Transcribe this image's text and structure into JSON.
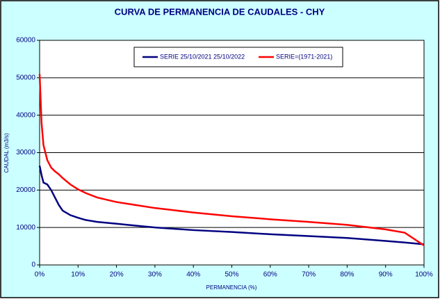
{
  "chart_data": {
    "type": "line",
    "title": "CURVA DE PERMANENCIA DE CAUDALES - CHY",
    "x_label": "PERMANENCIA (%)",
    "y_label": "CAUDAL (m3/s)",
    "x": [
      0,
      0.5,
      1,
      2,
      3,
      4,
      5,
      6,
      8,
      10,
      12,
      15,
      20,
      25,
      30,
      40,
      50,
      60,
      70,
      80,
      90,
      95,
      100
    ],
    "series": [
      {
        "name": "SERIE 25/10/2021 25/10/2022",
        "color": "#000080",
        "values": [
          26500,
          24000,
          22000,
          21500,
          20000,
          18000,
          16000,
          14500,
          13300,
          12600,
          12000,
          11500,
          11000,
          10500,
          10000,
          9300,
          8800,
          8200,
          7700,
          7200,
          6400,
          6000,
          5500
        ]
      },
      {
        "name": "SERIE=(1971-2021)",
        "color": "#ff0000",
        "values": [
          51000,
          38000,
          32000,
          28000,
          26000,
          25000,
          24200,
          23200,
          21500,
          20200,
          19200,
          18000,
          16800,
          16000,
          15200,
          14000,
          13000,
          12200,
          11500,
          10700,
          9500,
          8600,
          5200
        ]
      }
    ],
    "xlim": [
      0,
      100
    ],
    "xticks": [
      {
        "value": 0,
        "label": "0%"
      },
      {
        "value": 10,
        "label": "10%"
      },
      {
        "value": 20,
        "label": "20%"
      },
      {
        "value": 30,
        "label": "30%"
      },
      {
        "value": 40,
        "label": "40%"
      },
      {
        "value": 50,
        "label": "50%"
      },
      {
        "value": 60,
        "label": "60%"
      },
      {
        "value": 70,
        "label": "70%"
      },
      {
        "value": 80,
        "label": "80%"
      },
      {
        "value": 90,
        "label": "90%"
      },
      {
        "value": 100,
        "label": "100%"
      }
    ],
    "ylim": [
      0,
      60000
    ],
    "yticks": [
      0,
      10000,
      20000,
      30000,
      40000,
      50000,
      60000
    ],
    "grid": true,
    "legend": "top"
  }
}
